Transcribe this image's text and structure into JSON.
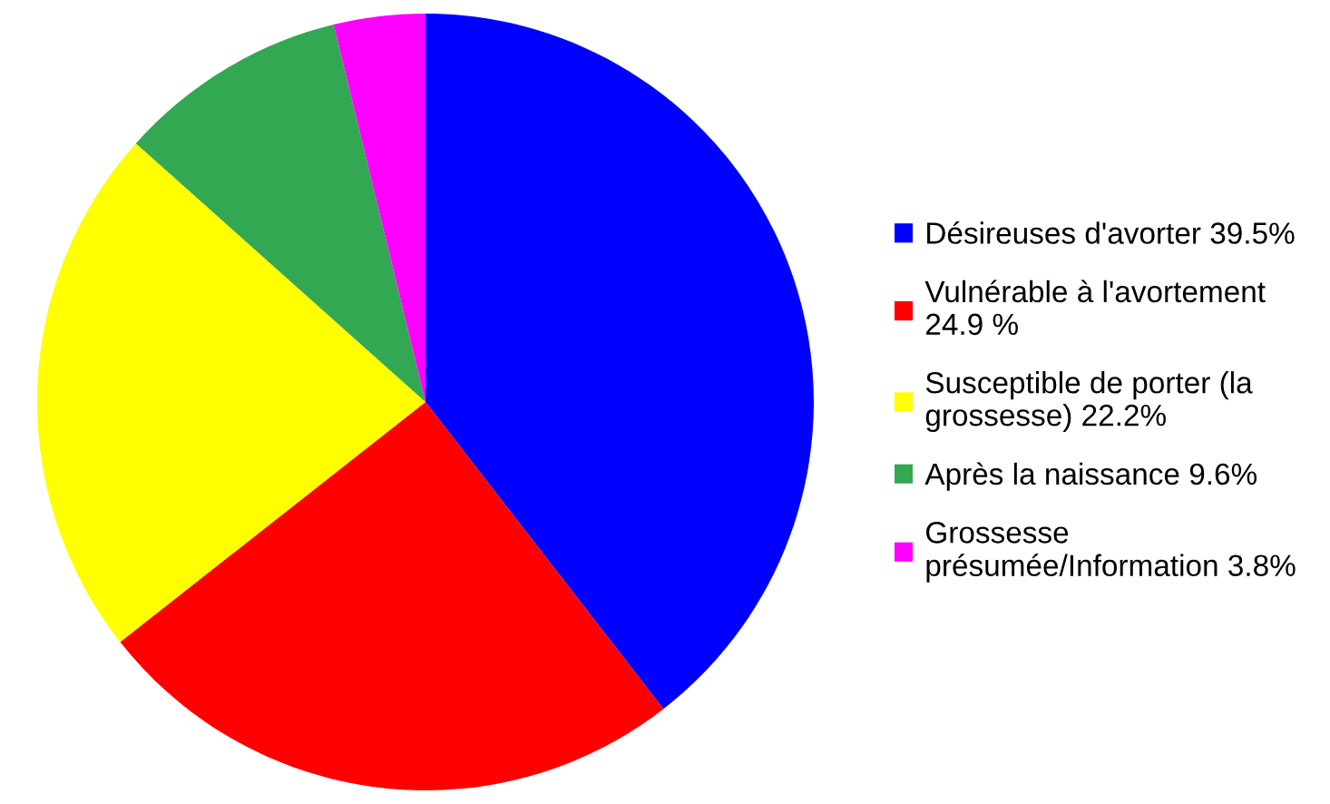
{
  "chart_data": {
    "type": "pie",
    "categories": [
      "Désireuses d'avorter 39.5%",
      "Vulnérable à l'avortement\n24.9 %",
      "Susceptible de porter (la\ngrossesse) 22.2%",
      "Après la naissance 9.6%",
      "Grossesse\nprésumée/Information 3.8%"
    ],
    "values": [
      39.5,
      24.9,
      22.2,
      9.6,
      3.8
    ],
    "colors": [
      "#0000ff",
      "#ff0000",
      "#ffff00",
      "#33a853",
      "#ff00ff"
    ],
    "legend": "right"
  }
}
